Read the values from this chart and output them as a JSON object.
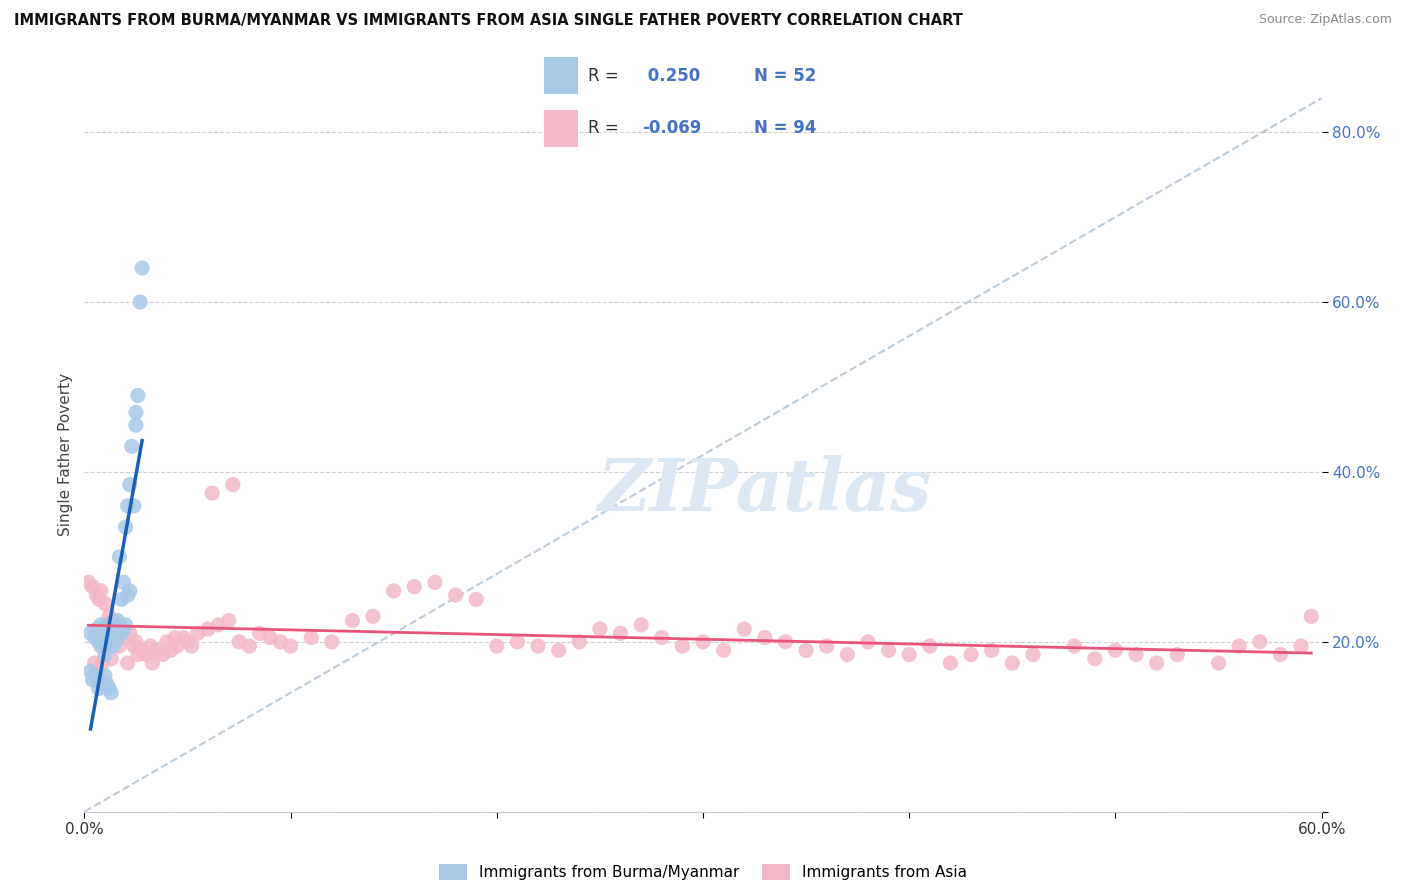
{
  "title": "IMMIGRANTS FROM BURMA/MYANMAR VS IMMIGRANTS FROM ASIA SINGLE FATHER POVERTY CORRELATION CHART",
  "source": "Source: ZipAtlas.com",
  "ylabel": "Single Father Poverty",
  "legend_label1": "Immigrants from Burma/Myanmar",
  "legend_label2": "Immigrants from Asia",
  "R1": 0.25,
  "N1": 52,
  "R2": -0.069,
  "N2": 94,
  "color_blue": "#a8c8e8",
  "color_pink": "#f4b8c8",
  "color_blue_line": "#1a5fb4",
  "color_pink_line": "#e8547a",
  "color_diag": "#b0c4d8",
  "watermark_color": "#dce8f4",
  "blue_scatter_x": [
    0.003,
    0.005,
    0.006,
    0.007,
    0.008,
    0.008,
    0.009,
    0.009,
    0.01,
    0.01,
    0.011,
    0.011,
    0.012,
    0.012,
    0.013,
    0.013,
    0.014,
    0.014,
    0.015,
    0.015,
    0.016,
    0.016,
    0.017,
    0.017,
    0.018,
    0.018,
    0.019,
    0.019,
    0.02,
    0.02,
    0.021,
    0.021,
    0.022,
    0.022,
    0.023,
    0.024,
    0.025,
    0.025,
    0.026,
    0.027,
    0.028,
    0.003,
    0.004,
    0.005,
    0.006,
    0.007,
    0.008,
    0.009,
    0.01,
    0.011,
    0.012,
    0.013
  ],
  "blue_scatter_y": [
    0.21,
    0.205,
    0.215,
    0.2,
    0.195,
    0.22,
    0.2,
    0.215,
    0.205,
    0.185,
    0.2,
    0.22,
    0.195,
    0.21,
    0.2,
    0.215,
    0.195,
    0.22,
    0.2,
    0.215,
    0.21,
    0.225,
    0.215,
    0.3,
    0.21,
    0.25,
    0.215,
    0.27,
    0.22,
    0.335,
    0.255,
    0.36,
    0.26,
    0.385,
    0.43,
    0.36,
    0.455,
    0.47,
    0.49,
    0.6,
    0.64,
    0.165,
    0.155,
    0.16,
    0.155,
    0.145,
    0.155,
    0.15,
    0.16,
    0.15,
    0.145,
    0.14
  ],
  "pink_scatter_x": [
    0.002,
    0.004,
    0.006,
    0.007,
    0.008,
    0.01,
    0.012,
    0.014,
    0.015,
    0.016,
    0.018,
    0.02,
    0.022,
    0.024,
    0.025,
    0.028,
    0.03,
    0.032,
    0.035,
    0.038,
    0.04,
    0.042,
    0.045,
    0.048,
    0.05,
    0.055,
    0.06,
    0.065,
    0.07,
    0.075,
    0.08,
    0.085,
    0.09,
    0.095,
    0.1,
    0.11,
    0.12,
    0.13,
    0.14,
    0.15,
    0.16,
    0.17,
    0.18,
    0.19,
    0.2,
    0.21,
    0.22,
    0.23,
    0.24,
    0.25,
    0.26,
    0.27,
    0.28,
    0.29,
    0.3,
    0.31,
    0.32,
    0.33,
    0.34,
    0.35,
    0.36,
    0.37,
    0.38,
    0.39,
    0.4,
    0.41,
    0.42,
    0.43,
    0.44,
    0.45,
    0.46,
    0.48,
    0.49,
    0.5,
    0.51,
    0.52,
    0.53,
    0.55,
    0.56,
    0.57,
    0.58,
    0.59,
    0.595,
    0.005,
    0.009,
    0.013,
    0.017,
    0.021,
    0.026,
    0.033,
    0.044,
    0.052,
    0.062,
    0.072
  ],
  "pink_scatter_y": [
    0.27,
    0.265,
    0.255,
    0.25,
    0.26,
    0.245,
    0.23,
    0.225,
    0.22,
    0.215,
    0.21,
    0.205,
    0.21,
    0.195,
    0.2,
    0.19,
    0.185,
    0.195,
    0.19,
    0.185,
    0.2,
    0.19,
    0.195,
    0.205,
    0.2,
    0.21,
    0.215,
    0.22,
    0.225,
    0.2,
    0.195,
    0.21,
    0.205,
    0.2,
    0.195,
    0.205,
    0.2,
    0.225,
    0.23,
    0.26,
    0.265,
    0.27,
    0.255,
    0.25,
    0.195,
    0.2,
    0.195,
    0.19,
    0.2,
    0.215,
    0.21,
    0.22,
    0.205,
    0.195,
    0.2,
    0.19,
    0.215,
    0.205,
    0.2,
    0.19,
    0.195,
    0.185,
    0.2,
    0.19,
    0.185,
    0.195,
    0.175,
    0.185,
    0.19,
    0.175,
    0.185,
    0.195,
    0.18,
    0.19,
    0.185,
    0.175,
    0.185,
    0.175,
    0.195,
    0.2,
    0.185,
    0.195,
    0.23,
    0.175,
    0.175,
    0.18,
    0.195,
    0.175,
    0.185,
    0.175,
    0.205,
    0.195,
    0.375,
    0.385
  ]
}
